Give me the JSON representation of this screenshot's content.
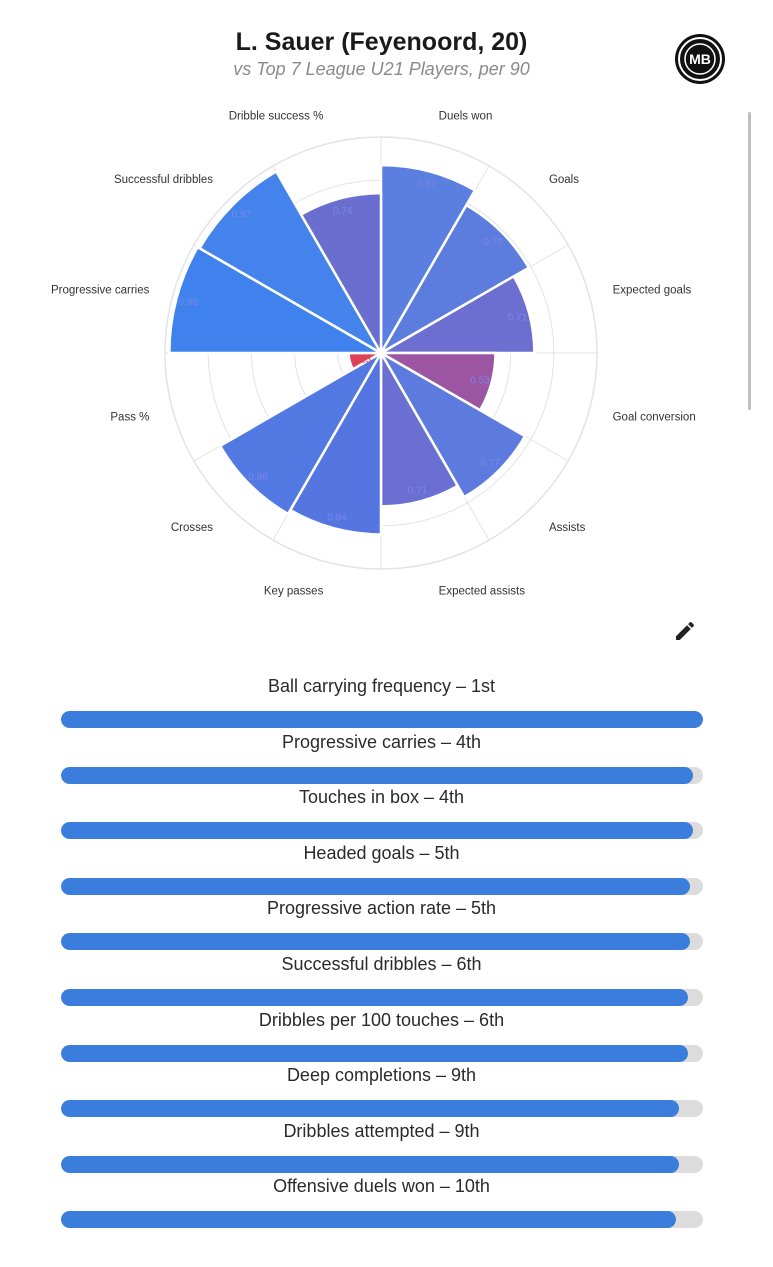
{
  "header": {
    "title": "L. Sauer (Feyenoord, 20)",
    "subtitle": "vs Top 7 League U21 Players, per 90",
    "logo_text": "MB",
    "edit_icon": "pencil-icon"
  },
  "colors": {
    "bar_fill": "#3b7ddd",
    "bar_track": "#dcdcdc",
    "radar_grid": "#e3e3e3",
    "label_text": "#333333"
  },
  "chart_data": [
    {
      "type": "polar-bar",
      "range": [
        0,
        1
      ],
      "categories": [
        {
          "label": "Duels won",
          "value": 0.87,
          "value_label": "0.87",
          "color": "#5a7fe0"
        },
        {
          "label": "Goals",
          "value": 0.79,
          "value_label": "0.79",
          "color": "#5c7ddd"
        },
        {
          "label": "Expected goals",
          "value": 0.71,
          "value_label": "0.71",
          "color": "#6c6fd0"
        },
        {
          "label": "Goal conversion",
          "value": 0.53,
          "value_label": "0.53",
          "color": "#9b55a2"
        },
        {
          "label": "Assists",
          "value": 0.77,
          "value_label": "0.77",
          "color": "#5d7ade"
        },
        {
          "label": "Expected assists",
          "value": 0.71,
          "value_label": "0.71",
          "color": "#6b6fd2"
        },
        {
          "label": "Key passes",
          "value": 0.84,
          "value_label": "0.84",
          "color": "#5576e0"
        },
        {
          "label": "Crosses",
          "value": 0.86,
          "value_label": "0.86",
          "color": "#5278e2"
        },
        {
          "label": "Pass %",
          "value": 0.15,
          "value_label": "0.15",
          "color": "#de4058"
        },
        {
          "label": "Progressive carries",
          "value": 0.98,
          "value_label": "0.98",
          "color": "#3f82ee"
        },
        {
          "label": "Successful dribbles",
          "value": 0.97,
          "value_label": "0.97",
          "color": "#4583ec"
        },
        {
          "label": "Dribble success %",
          "value": 0.74,
          "value_label": "0.74",
          "color": "#6a6ecf"
        }
      ]
    },
    {
      "type": "bar",
      "orientation": "horizontal",
      "range": [
        0,
        1
      ],
      "items": [
        {
          "label": "Ball carrying frequency – 1st",
          "value": 1.0
        },
        {
          "label": "Progressive carries – 4th",
          "value": 0.985
        },
        {
          "label": "Touches in box – 4th",
          "value": 0.985
        },
        {
          "label": "Headed goals – 5th",
          "value": 0.98
        },
        {
          "label": "Progressive action rate – 5th",
          "value": 0.98
        },
        {
          "label": "Successful dribbles – 6th",
          "value": 0.976
        },
        {
          "label": "Dribbles per 100 touches – 6th",
          "value": 0.976
        },
        {
          "label": "Deep completions – 9th",
          "value": 0.963
        },
        {
          "label": "Dribbles attempted – 9th",
          "value": 0.963
        },
        {
          "label": "Offensive duels won – 10th",
          "value": 0.958
        }
      ]
    }
  ]
}
